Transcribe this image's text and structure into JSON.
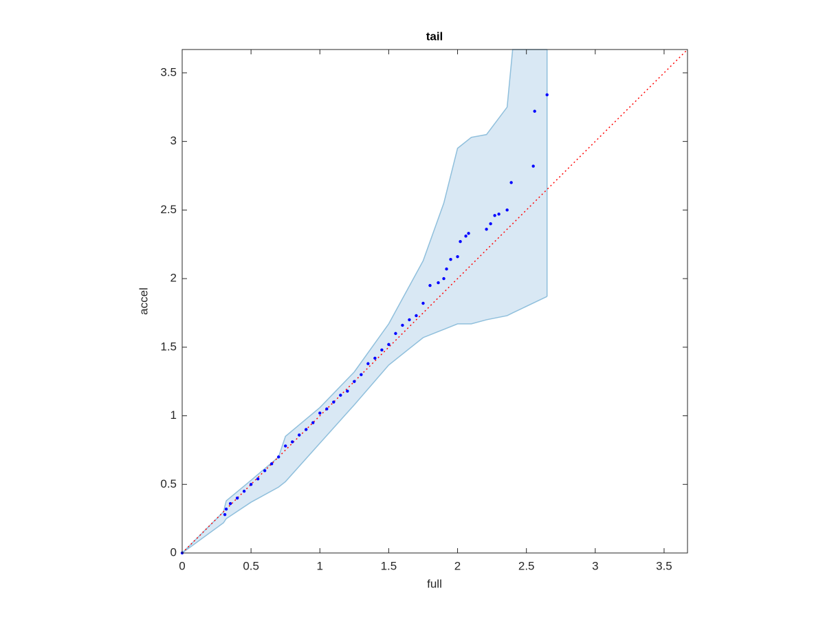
{
  "chart_data": {
    "type": "scatter",
    "title": "tail",
    "x_label": "full",
    "y_label": "accel",
    "xlim": [
      0,
      3.67
    ],
    "ylim": [
      0,
      3.67
    ],
    "xticks": [
      0,
      0.5,
      1,
      1.5,
      2,
      2.5,
      3,
      3.5
    ],
    "yticks": [
      0,
      0.5,
      1,
      1.5,
      2,
      2.5,
      3,
      3.5
    ],
    "grid": false,
    "points": {
      "color": "#0000ff",
      "x": [
        0,
        0.31,
        0.32,
        0.35,
        0.4,
        0.45,
        0.5,
        0.55,
        0.6,
        0.65,
        0.7,
        0.75,
        0.8,
        0.85,
        0.9,
        0.95,
        1.0,
        1.05,
        1.1,
        1.15,
        1.2,
        1.25,
        1.3,
        1.35,
        1.4,
        1.45,
        1.5,
        1.55,
        1.6,
        1.65,
        1.7,
        1.75,
        1.8,
        1.86,
        1.9,
        1.92,
        1.95,
        2.0,
        2.02,
        2.06,
        2.08,
        2.21,
        2.24,
        2.27,
        2.3,
        2.36,
        2.39,
        2.55,
        2.56,
        2.65
      ],
      "y": [
        0,
        0.28,
        0.32,
        0.36,
        0.4,
        0.45,
        0.5,
        0.54,
        0.6,
        0.65,
        0.7,
        0.78,
        0.81,
        0.86,
        0.9,
        0.95,
        1.02,
        1.05,
        1.1,
        1.15,
        1.18,
        1.25,
        1.3,
        1.38,
        1.42,
        1.48,
        1.52,
        1.6,
        1.66,
        1.7,
        1.73,
        1.82,
        1.95,
        1.97,
        2.0,
        2.07,
        2.14,
        2.16,
        2.27,
        2.31,
        2.33,
        2.36,
        2.4,
        2.46,
        2.47,
        2.5,
        2.7,
        2.82,
        3.22,
        3.34
      ]
    },
    "band": {
      "color": "#d9e8f4",
      "edge_color": "#8fbfdc",
      "x": [
        0,
        0.3,
        0.32,
        0.5,
        0.7,
        0.75,
        1.0,
        1.25,
        1.5,
        1.75,
        1.9,
        2.0,
        2.1,
        2.21,
        2.36,
        2.4,
        2.65
      ],
      "upper": [
        0,
        0.3,
        0.38,
        0.53,
        0.7,
        0.85,
        1.06,
        1.32,
        1.67,
        2.13,
        2.55,
        2.95,
        3.03,
        3.05,
        3.25,
        3.67,
        3.67
      ],
      "lower": [
        0,
        0.22,
        0.25,
        0.37,
        0.48,
        0.52,
        0.8,
        1.08,
        1.37,
        1.57,
        1.63,
        1.67,
        1.67,
        1.7,
        1.73,
        1.75,
        1.87
      ]
    },
    "reference_line": {
      "color": "#ff0000",
      "x": [
        0,
        3.67
      ],
      "y": [
        0,
        3.67
      ]
    }
  }
}
